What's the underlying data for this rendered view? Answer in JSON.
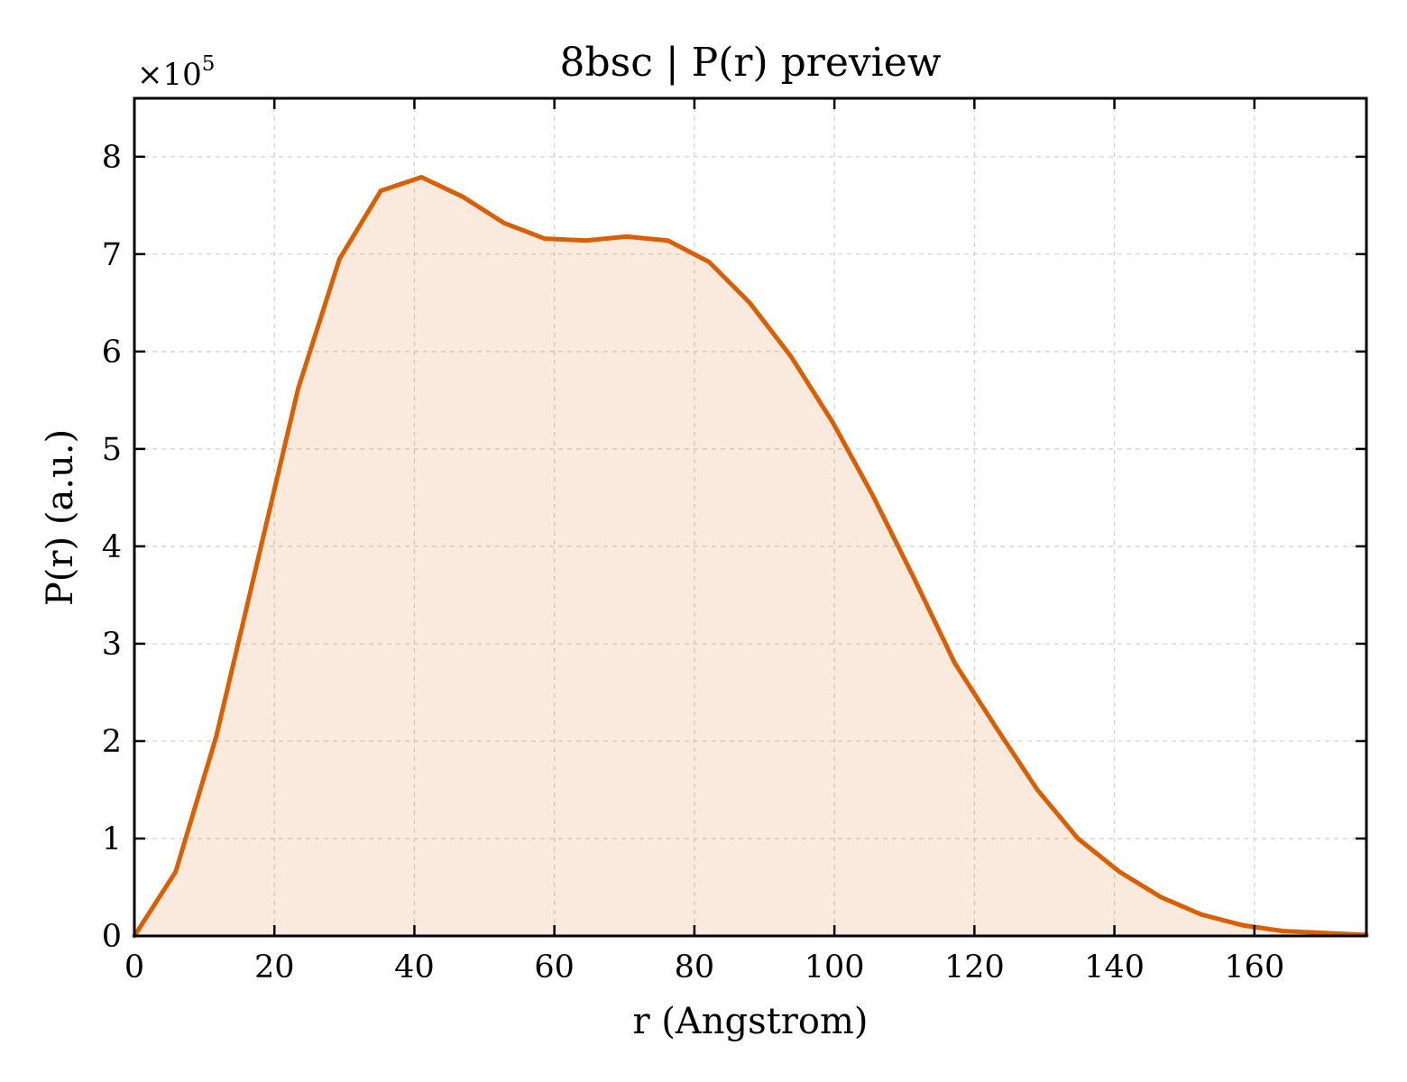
{
  "chart_data": {
    "type": "area",
    "title": "8bsc | P(r) preview",
    "xlabel": "r (Angstrom)",
    "ylabel": "P(r) (a.u.)",
    "y_multiplier_base": "×10",
    "y_multiplier_exp": "5",
    "xlim": [
      0,
      176
    ],
    "ylim": [
      0,
      8.6
    ],
    "xticks": [
      0,
      20,
      40,
      60,
      80,
      100,
      120,
      140,
      160
    ],
    "xtick_labels": [
      "0",
      "20",
      "40",
      "60",
      "80",
      "100",
      "120",
      "140",
      "160"
    ],
    "yticks": [
      0,
      1,
      2,
      3,
      4,
      5,
      6,
      7,
      8
    ],
    "ytick_labels": [
      "0",
      "1",
      "2",
      "3",
      "4",
      "5",
      "6",
      "7",
      "8"
    ],
    "grid": true,
    "line_color": "#d95f02",
    "fill_color": "#d95f02",
    "series": [
      {
        "x": [
          0,
          5.9,
          11.7,
          17.6,
          23.4,
          29.3,
          35.2,
          41.0,
          46.9,
          52.8,
          58.6,
          64.5,
          70.3,
          76.2,
          82.1,
          87.9,
          93.8,
          99.7,
          105.5,
          111.4,
          117.2,
          123.1,
          129.0,
          134.8,
          140.7,
          146.6,
          152.4,
          158.3,
          164.1,
          170.0,
          176.0
        ],
        "y": [
          0.0,
          0.66,
          2.05,
          3.85,
          5.62,
          6.95,
          7.65,
          7.79,
          7.59,
          7.32,
          7.16,
          7.14,
          7.18,
          7.14,
          6.92,
          6.5,
          5.95,
          5.28,
          4.52,
          3.67,
          2.8,
          2.14,
          1.5,
          1.0,
          0.66,
          0.4,
          0.22,
          0.11,
          0.05,
          0.03,
          0.01
        ]
      }
    ]
  }
}
